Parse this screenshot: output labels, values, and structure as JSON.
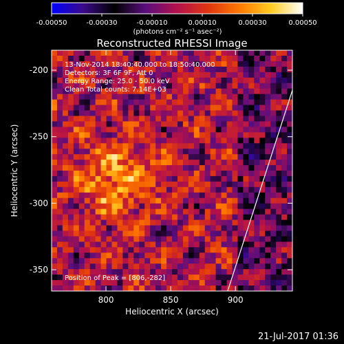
{
  "chart_data": {
    "type": "heatmap",
    "title": "Reconstructed RHESSI Image",
    "xlabel": "Heliocentric X (arcsec)",
    "ylabel": "Heliocentric Y (arcsec)",
    "xlim": [
      758,
      944
    ],
    "ylim": [
      -366,
      -185
    ],
    "x_ticks": [
      800,
      850,
      900
    ],
    "y_ticks": [
      -200,
      -250,
      -300,
      -350
    ],
    "colorbar": {
      "min": -0.0005,
      "max": 0.0005,
      "tick_values": [
        -0.0005,
        -0.0003,
        -0.0001,
        0.0001,
        0.0003,
        0.0005
      ],
      "tick_labels": [
        "-0.00050",
        "-0.00030",
        "-0.00010",
        "0.00010",
        "0.00030",
        "0.00050"
      ],
      "unit_label": "(photons cm⁻² s⁻¹ asec⁻²)",
      "colormap": [
        "#0000ff",
        "#3a0a8a",
        "#000000",
        "#5a0e7e",
        "#b3114a",
        "#e0360f",
        "#ff7a00",
        "#ffcc22",
        "#ffffff"
      ]
    },
    "annotations": [
      "13-Nov-2014 18:40:40.000 to 18:50:40.000",
      "Detectors: 3F 6F 9F, Att 0",
      "Energy Range: 25.0 - 50.0 keV",
      "Clean     Total counts: 7.14E+03"
    ],
    "peak_label": "Position of Peak = [806,-282]",
    "peak": [
      806,
      -282
    ],
    "limb": [
      [
        894,
        -366
      ],
      [
        944,
        -215
      ]
    ]
  },
  "footer": {
    "timestamp": "21-Jul-2017 01:36"
  }
}
